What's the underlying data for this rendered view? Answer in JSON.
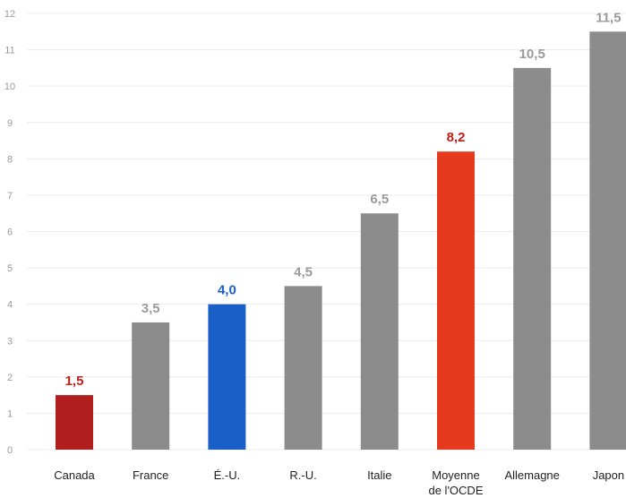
{
  "chart_data": {
    "type": "bar",
    "categories": [
      "Canada",
      "France",
      "É.-U.",
      "R.-U.",
      "Italie",
      "Moyenne de l'OCDE",
      "Allemagne",
      "Japon"
    ],
    "category_lines": [
      [
        "Canada"
      ],
      [
        "France"
      ],
      [
        "É.-U."
      ],
      [
        "R.-U."
      ],
      [
        "Italie"
      ],
      [
        "Moyenne",
        "de l'OCDE"
      ],
      [
        "Allemagne"
      ],
      [
        "Japon"
      ]
    ],
    "values": [
      1.5,
      3.5,
      4.0,
      4.5,
      6.5,
      8.2,
      10.5,
      11.5
    ],
    "value_labels": [
      "1,5",
      "3,5",
      "4,0",
      "4,5",
      "6,5",
      "8,2",
      "10,5",
      "11,5"
    ],
    "bar_colors": [
      "#b01e1e",
      "#8c8c8c",
      "#1a5fc8",
      "#8c8c8c",
      "#8c8c8c",
      "#e63a1e",
      "#8c8c8c",
      "#8c8c8c"
    ],
    "label_colors": [
      "#c0201a",
      "#9a9a9a",
      "#1a5fc8",
      "#9a9a9a",
      "#9a9a9a",
      "#c0201a",
      "#9a9a9a",
      "#9a9a9a"
    ],
    "title": "",
    "xlabel": "",
    "ylabel": "",
    "ylim": [
      0,
      12
    ],
    "yticks": [
      0,
      1,
      2,
      3,
      4,
      5,
      6,
      7,
      8,
      9,
      10,
      11,
      12
    ],
    "grid": true,
    "legend": "none"
  }
}
